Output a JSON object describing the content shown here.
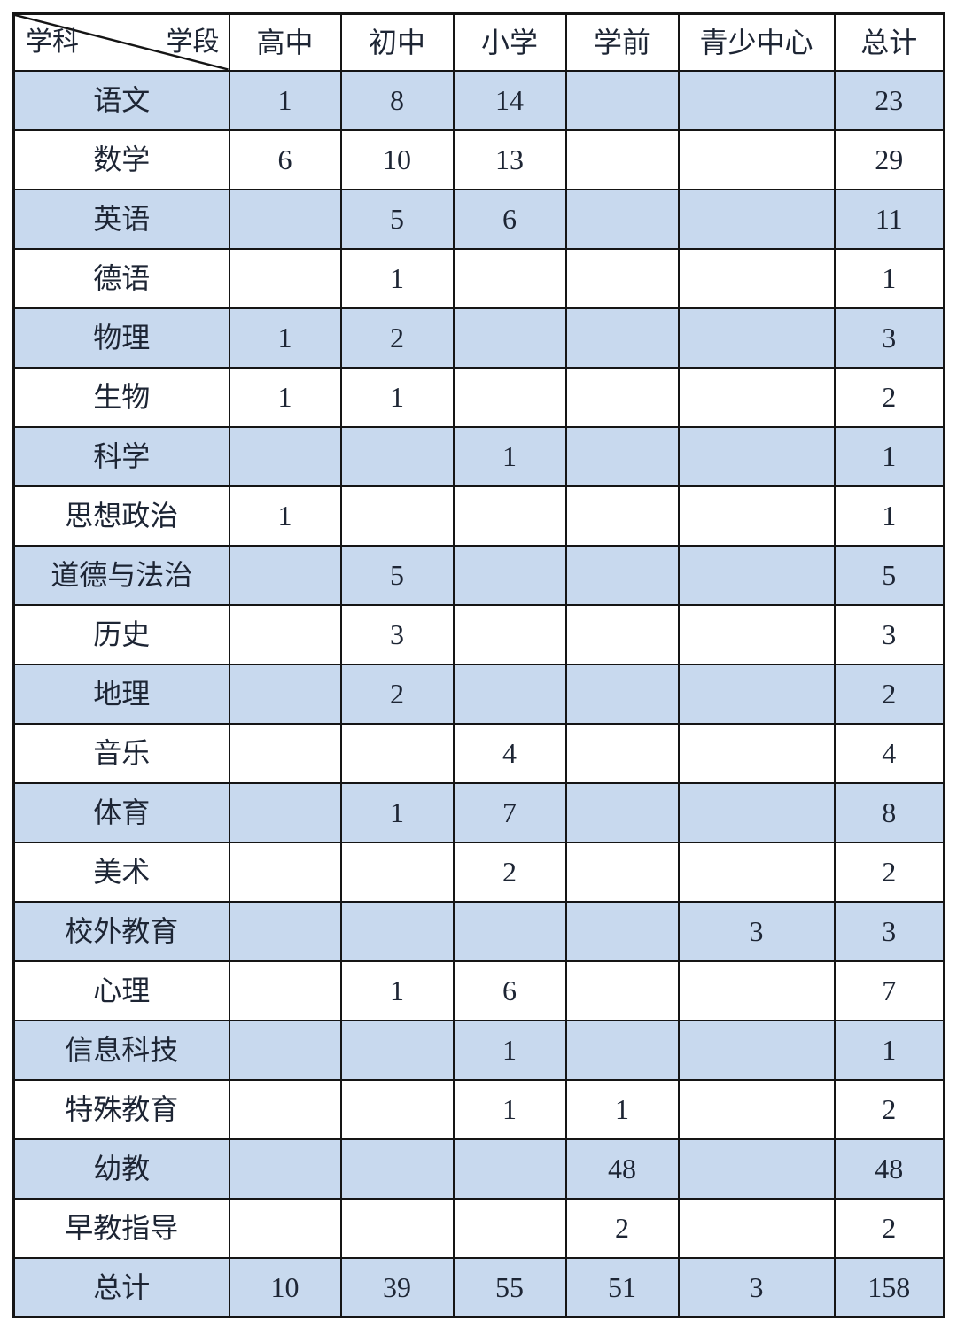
{
  "colors": {
    "band_fill": "#c8d9ee",
    "border": "#151515",
    "text": "#1d2534",
    "background": "#ffffff"
  },
  "chart_data": {
    "type": "table",
    "corner": {
      "row_axis": "学科",
      "col_axis": "学段"
    },
    "columns": [
      "高中",
      "初中",
      "小学",
      "学前",
      "青少中心",
      "总计"
    ],
    "rows": [
      {
        "label": "语文",
        "values": [
          "1",
          "8",
          "14",
          "",
          "",
          "23"
        ]
      },
      {
        "label": "数学",
        "values": [
          "6",
          "10",
          "13",
          "",
          "",
          "29"
        ]
      },
      {
        "label": "英语",
        "values": [
          "",
          "5",
          "6",
          "",
          "",
          "11"
        ]
      },
      {
        "label": "德语",
        "values": [
          "",
          "1",
          "",
          "",
          "",
          "1"
        ]
      },
      {
        "label": "物理",
        "values": [
          "1",
          "2",
          "",
          "",
          "",
          "3"
        ]
      },
      {
        "label": "生物",
        "values": [
          "1",
          "1",
          "",
          "",
          "",
          "2"
        ]
      },
      {
        "label": "科学",
        "values": [
          "",
          "",
          "1",
          "",
          "",
          "1"
        ]
      },
      {
        "label": "思想政治",
        "values": [
          "1",
          "",
          "",
          "",
          "",
          "1"
        ]
      },
      {
        "label": "道德与法治",
        "values": [
          "",
          "5",
          "",
          "",
          "",
          "5"
        ]
      },
      {
        "label": "历史",
        "values": [
          "",
          "3",
          "",
          "",
          "",
          "3"
        ]
      },
      {
        "label": "地理",
        "values": [
          "",
          "2",
          "",
          "",
          "",
          "2"
        ]
      },
      {
        "label": "音乐",
        "values": [
          "",
          "",
          "4",
          "",
          "",
          "4"
        ]
      },
      {
        "label": "体育",
        "values": [
          "",
          "1",
          "7",
          "",
          "",
          "8"
        ]
      },
      {
        "label": "美术",
        "values": [
          "",
          "",
          "2",
          "",
          "",
          "2"
        ]
      },
      {
        "label": "校外教育",
        "values": [
          "",
          "",
          "",
          "",
          "3",
          "3"
        ]
      },
      {
        "label": "心理",
        "values": [
          "",
          "1",
          "6",
          "",
          "",
          "7"
        ]
      },
      {
        "label": "信息科技",
        "values": [
          "",
          "",
          "1",
          "",
          "",
          "1"
        ]
      },
      {
        "label": "特殊教育",
        "values": [
          "",
          "",
          "1",
          "1",
          "",
          "2"
        ]
      },
      {
        "label": "幼教",
        "values": [
          "",
          "",
          "",
          "48",
          "",
          "48"
        ]
      },
      {
        "label": "早教指导",
        "values": [
          "",
          "",
          "",
          "2",
          "",
          "2"
        ]
      },
      {
        "label": "总计",
        "values": [
          "10",
          "39",
          "55",
          "51",
          "3",
          "158"
        ]
      }
    ]
  }
}
